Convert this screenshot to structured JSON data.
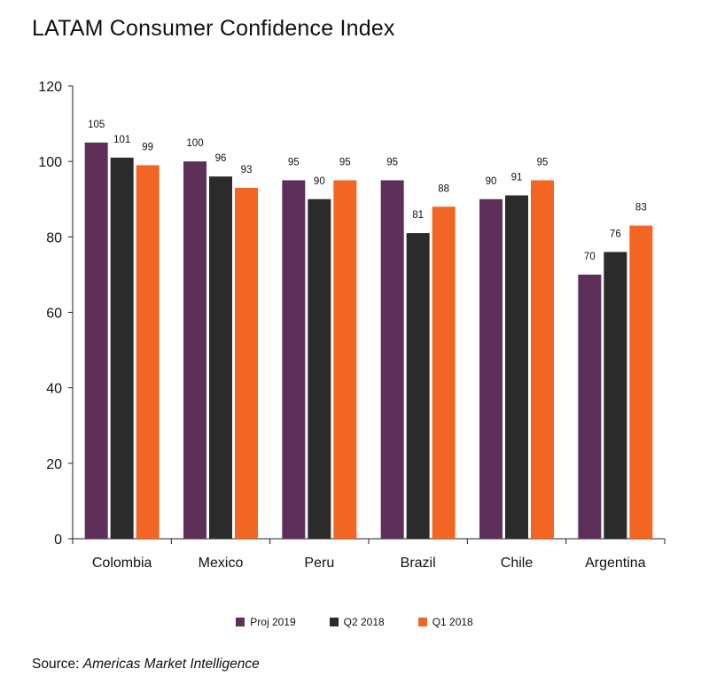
{
  "chart_data": {
    "type": "bar",
    "title": "LATAM Consumer Confidence Index",
    "categories": [
      "Colombia",
      "Mexico",
      "Peru",
      "Brazil",
      "Chile",
      "Argentina"
    ],
    "series": [
      {
        "name": "Proj 2019",
        "color": "#5e2f59",
        "values": [
          105,
          100,
          95,
          95,
          90,
          70
        ]
      },
      {
        "name": "Q2 2018",
        "color": "#2b2b2b",
        "values": [
          101,
          96,
          90,
          81,
          91,
          76
        ]
      },
      {
        "name": "Q1 2018",
        "color": "#f26522",
        "values": [
          99,
          93,
          95,
          88,
          95,
          83
        ]
      }
    ],
    "ylim": [
      0,
      120
    ],
    "yticks": [
      0,
      20,
      40,
      60,
      80,
      100,
      120
    ],
    "xlabel": "",
    "ylabel": "",
    "grid": false,
    "legend_position": "bottom-center"
  },
  "source": {
    "label": "Source:",
    "name": "Americas Market Intelligence"
  }
}
